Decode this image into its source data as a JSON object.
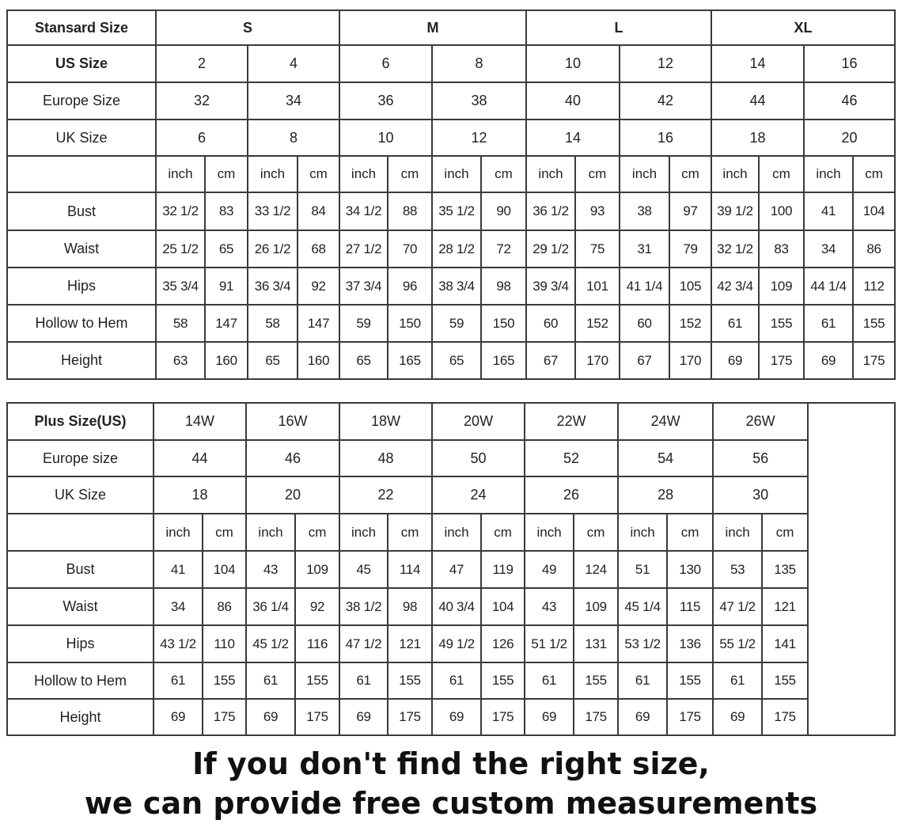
{
  "standard": {
    "header_label": "Stansard Size",
    "groups": [
      "S",
      "M",
      "L",
      "XL"
    ],
    "size_rows": [
      {
        "label": "US Size",
        "values": [
          "2",
          "4",
          "6",
          "8",
          "10",
          "12",
          "14",
          "16"
        ]
      },
      {
        "label": "Europe Size",
        "values": [
          "32",
          "34",
          "36",
          "38",
          "40",
          "42",
          "44",
          "46"
        ]
      },
      {
        "label": "UK Size",
        "values": [
          "6",
          "8",
          "10",
          "12",
          "14",
          "16",
          "18",
          "20"
        ]
      }
    ],
    "units": [
      "inch",
      "cm"
    ],
    "measurements": [
      {
        "label": "Bust",
        "values": [
          "32 1/2",
          "83",
          "33 1/2",
          "84",
          "34 1/2",
          "88",
          "35 1/2",
          "90",
          "36 1/2",
          "93",
          "38",
          "97",
          "39 1/2",
          "100",
          "41",
          "104"
        ]
      },
      {
        "label": "Waist",
        "values": [
          "25 1/2",
          "65",
          "26 1/2",
          "68",
          "27 1/2",
          "70",
          "28 1/2",
          "72",
          "29 1/2",
          "75",
          "31",
          "79",
          "32 1/2",
          "83",
          "34",
          "86"
        ]
      },
      {
        "label": "Hips",
        "values": [
          "35 3/4",
          "91",
          "36 3/4",
          "92",
          "37 3/4",
          "96",
          "38 3/4",
          "98",
          "39 3/4",
          "101",
          "41 1/4",
          "105",
          "42 3/4",
          "109",
          "44 1/4",
          "112"
        ]
      },
      {
        "label": "Hollow to Hem",
        "values": [
          "58",
          "147",
          "58",
          "147",
          "59",
          "150",
          "59",
          "150",
          "60",
          "152",
          "60",
          "152",
          "61",
          "155",
          "61",
          "155"
        ]
      },
      {
        "label": "Height",
        "values": [
          "63",
          "160",
          "65",
          "160",
          "65",
          "165",
          "65",
          "165",
          "67",
          "170",
          "67",
          "170",
          "69",
          "175",
          "69",
          "175"
        ]
      }
    ]
  },
  "plus": {
    "header_label": "Plus Size(US)",
    "sizes": [
      "14W",
      "16W",
      "18W",
      "20W",
      "22W",
      "24W",
      "26W"
    ],
    "size_rows": [
      {
        "label": "Europe size",
        "values": [
          "44",
          "46",
          "48",
          "50",
          "52",
          "54",
          "56"
        ]
      },
      {
        "label": "UK Size",
        "values": [
          "18",
          "20",
          "22",
          "24",
          "26",
          "28",
          "30"
        ]
      }
    ],
    "units": [
      "inch",
      "cm"
    ],
    "measurements": [
      {
        "label": "Bust",
        "values": [
          "41",
          "104",
          "43",
          "109",
          "45",
          "114",
          "47",
          "119",
          "49",
          "124",
          "51",
          "130",
          "53",
          "135"
        ]
      },
      {
        "label": "Waist",
        "values": [
          "34",
          "86",
          "36 1/4",
          "92",
          "38 1/2",
          "98",
          "40 3/4",
          "104",
          "43",
          "109",
          "45 1/4",
          "115",
          "47 1/2",
          "121"
        ]
      },
      {
        "label": "Hips",
        "values": [
          "43 1/2",
          "110",
          "45 1/2",
          "116",
          "47 1/2",
          "121",
          "49 1/2",
          "126",
          "51 1/2",
          "131",
          "53 1/2",
          "136",
          "55 1/2",
          "141"
        ]
      },
      {
        "label": "Hollow to Hem",
        "values": [
          "61",
          "155",
          "61",
          "155",
          "61",
          "155",
          "61",
          "155",
          "61",
          "155",
          "61",
          "155",
          "61",
          "155"
        ]
      },
      {
        "label": "Height",
        "values": [
          "69",
          "175",
          "69",
          "175",
          "69",
          "175",
          "69",
          "175",
          "69",
          "175",
          "69",
          "175",
          "69",
          "175"
        ]
      }
    ]
  },
  "footer": {
    "line1": "If you don't find the right size,",
    "line2": "we can provide free custom measurements"
  }
}
